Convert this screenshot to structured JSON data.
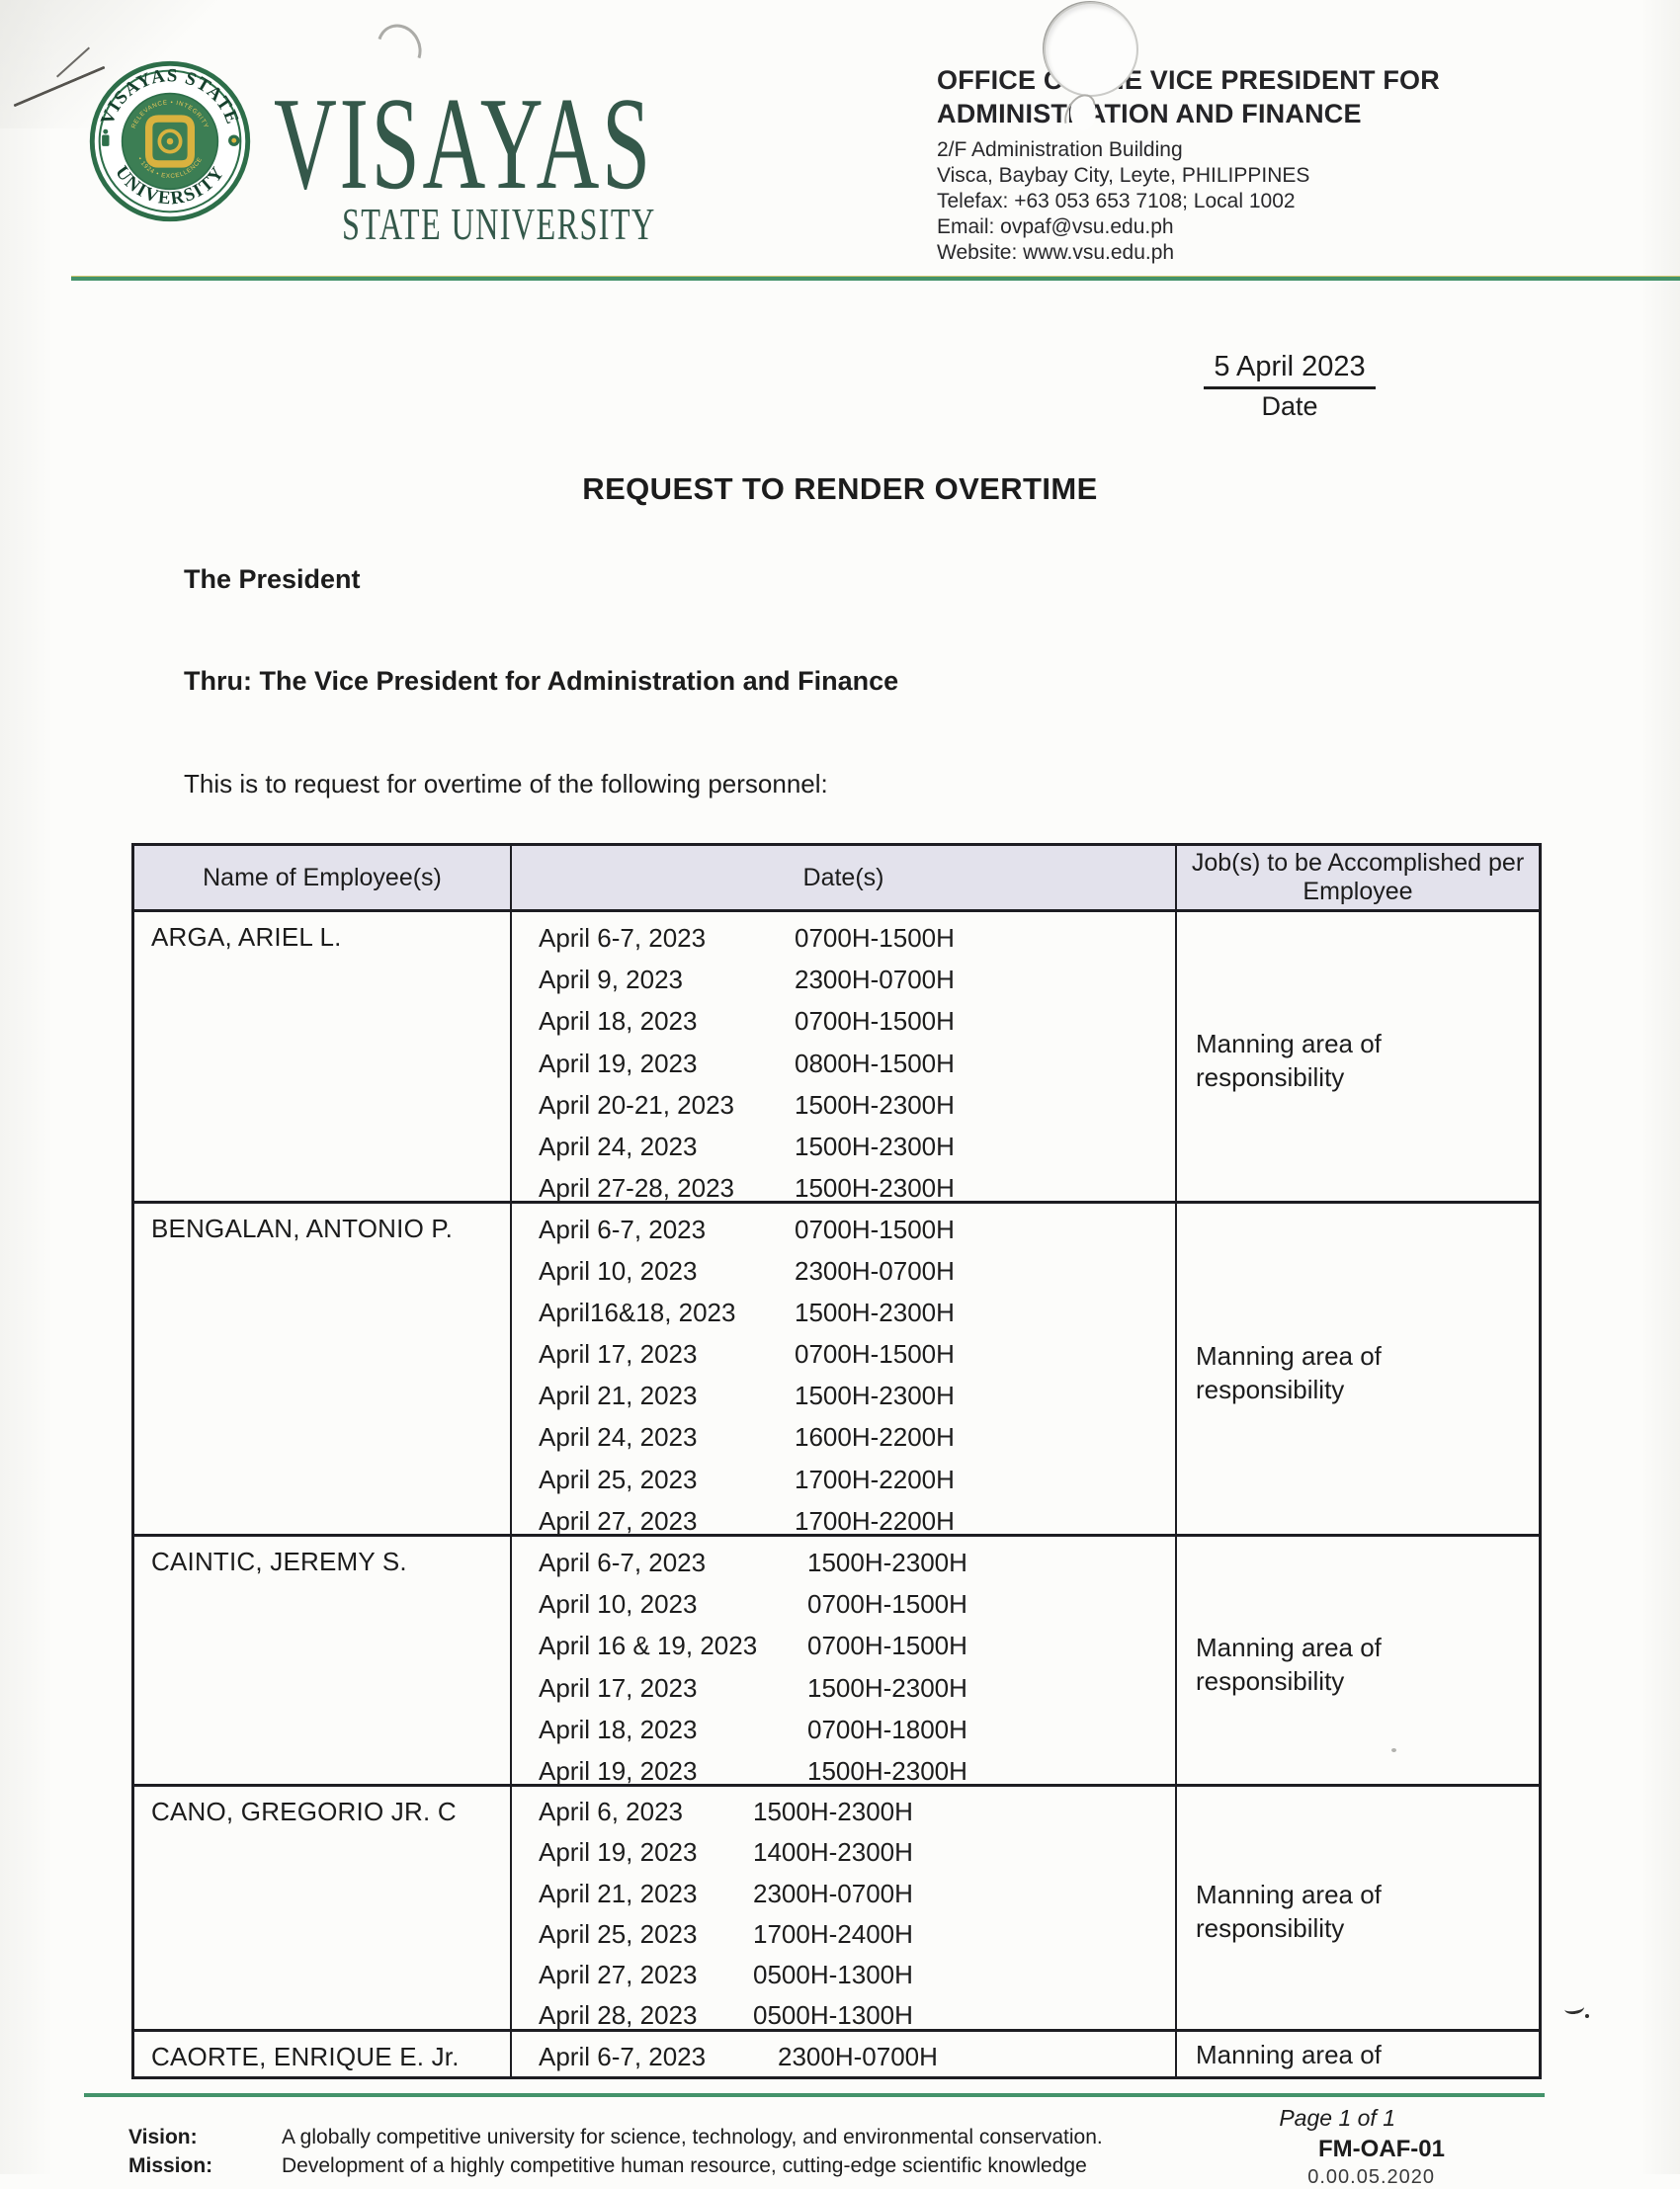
{
  "header": {
    "seal_top_text": "VISAYAS STATE",
    "seal_bottom_text": "UNIVERSITY",
    "seal_inner_top": "RELEVANCE • INTEGRITY",
    "seal_inner_bottom": "• 1924 • EXCELLENCE",
    "wordmark_line1": "VISAYAS",
    "wordmark_line2": "STATE UNIVERSITY",
    "office_name_line1": "OFFICE OF THE VICE PRESIDENT FOR",
    "office_name_line2": "ADMINISTRATION AND FINANCE",
    "address_line1": "2/F Administration Building",
    "address_line2": "Visca, Baybay City, Leyte, PHILIPPINES",
    "telefax": "Telefax: +63 053 653 7108; Local 1002",
    "email": "Email: ovpaf@vsu.edu.ph",
    "website": "Website: www.vsu.edu.ph"
  },
  "date_block": {
    "value": "5 April 2023",
    "label": "Date"
  },
  "title": "REQUEST TO RENDER OVERTIME",
  "letter": {
    "addressee": "The President",
    "thru_line": "Thru: The Vice President for Administration and Finance",
    "intro": "This is to request for overtime of the following personnel:"
  },
  "table": {
    "headers": [
      "Name of Employee(s)",
      "Date(s)",
      "Job(s) to be Accomplished per Employee"
    ],
    "rows": [
      {
        "name": "ARGA, ARIEL L.",
        "entries": [
          {
            "date": "April 6-7, 2023",
            "time": "0700H-1500H"
          },
          {
            "date": "April 9, 2023",
            "time": "2300H-0700H"
          },
          {
            "date": "April 18, 2023",
            "time": "0700H-1500H"
          },
          {
            "date": "April 19, 2023",
            "time": "0800H-1500H"
          },
          {
            "date": "April 20-21, 2023",
            "time": "1500H-2300H"
          },
          {
            "date": "April 24, 2023",
            "time": "1500H-2300H"
          },
          {
            "date": "April 27-28, 2023",
            "time": "1500H-2300H"
          }
        ],
        "job": "Manning area of responsibility"
      },
      {
        "name": "BENGALAN, ANTONIO P.",
        "entries": [
          {
            "date": "April 6-7, 2023",
            "time": "0700H-1500H"
          },
          {
            "date": "April 10, 2023",
            "time": "2300H-0700H"
          },
          {
            "date": "April16&18, 2023",
            "time": "1500H-2300H"
          },
          {
            "date": "April 17, 2023",
            "time": "0700H-1500H"
          },
          {
            "date": "April 21, 2023",
            "time": "1500H-2300H"
          },
          {
            "date": "April 24, 2023",
            "time": "1600H-2200H"
          },
          {
            "date": "April 25, 2023",
            "time": "1700H-2200H"
          },
          {
            "date": "April 27, 2023",
            "time": "1700H-2200H"
          }
        ],
        "job": "Manning area of responsibility"
      },
      {
        "name": "CAINTIC, JEREMY S.",
        "entries": [
          {
            "date": "April 6-7, 2023",
            "time": "1500H-2300H"
          },
          {
            "date": "April 10, 2023",
            "time": "0700H-1500H"
          },
          {
            "date": "April 16 & 19, 2023",
            "time": "0700H-1500H"
          },
          {
            "date": "April 17, 2023",
            "time": "1500H-2300H"
          },
          {
            "date": "April 18, 2023",
            "time": "0700H-1800H"
          },
          {
            "date": "April 19, 2023",
            "time": "1500H-2300H"
          }
        ],
        "job": "Manning area of responsibility"
      },
      {
        "name": "CANO, GREGORIO JR. C",
        "entries": [
          {
            "date": "April 6, 2023",
            "time": "1500H-2300H"
          },
          {
            "date": "April 19, 2023",
            "time": "1400H-2300H"
          },
          {
            "date": "April 21, 2023",
            "time": "2300H-0700H"
          },
          {
            "date": "April 25, 2023",
            "time": "1700H-2400H"
          },
          {
            "date": "April 27, 2023",
            "time": "0500H-1300H"
          },
          {
            "date": "April 28, 2023",
            "time": "0500H-1300H"
          }
        ],
        "job": "Manning area of responsibility"
      },
      {
        "name": "CAORTE, ENRIQUE E. Jr.",
        "entries": [
          {
            "date": "April 6-7, 2023",
            "time": "2300H-0700H"
          }
        ],
        "job": "Manning area of"
      }
    ]
  },
  "footer": {
    "page_number": "Page 1 of 1",
    "vision_label": "Vision:",
    "vision_text": "A globally competitive university for science, technology, and environmental conservation.",
    "mission_label": "Mission:",
    "mission_text": "Development of a highly competitive human resource, cutting-edge scientific knowledge",
    "form_code": "FM-OAF-01",
    "form_code_sub_cropped": "0.00.05.2020"
  },
  "colors": {
    "brand_green": "#34584a",
    "seal_green": "#2d6e49",
    "seal_gold": "#d9b23f",
    "accent_line_green": "#44936a",
    "table_header_bg": "#e3e2ec"
  }
}
